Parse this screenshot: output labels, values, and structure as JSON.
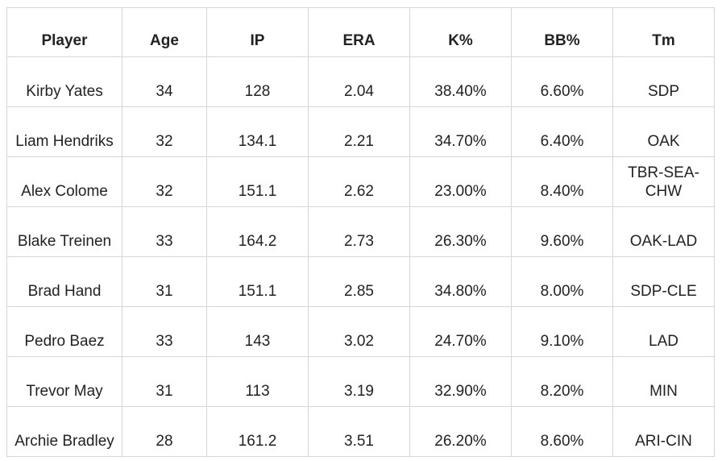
{
  "table": {
    "headers": [
      "Player",
      "Age",
      "IP",
      "ERA",
      "K%",
      "BB%",
      "Tm"
    ],
    "rows": [
      [
        "Kirby Yates",
        "34",
        "128",
        "2.04",
        "38.40%",
        "6.60%",
        "SDP"
      ],
      [
        "Liam Hendriks",
        "32",
        "134.1",
        "2.21",
        "34.70%",
        "6.40%",
        "OAK"
      ],
      [
        "Alex Colome",
        "32",
        "151.1",
        "2.62",
        "23.00%",
        "8.40%",
        "TBR-SEA-CHW"
      ],
      [
        "Blake Treinen",
        "33",
        "164.2",
        "2.73",
        "26.30%",
        "9.60%",
        "OAK-LAD"
      ],
      [
        "Brad Hand",
        "31",
        "151.1",
        "2.85",
        "34.80%",
        "8.00%",
        "SDP-CLE"
      ],
      [
        "Pedro Baez",
        "33",
        "143",
        "3.02",
        "24.70%",
        "9.10%",
        "LAD"
      ],
      [
        "Trevor May",
        "31",
        "113",
        "3.19",
        "32.90%",
        "8.20%",
        "MIN"
      ],
      [
        "Archie Bradley",
        "28",
        "161.2",
        "3.51",
        "26.20%",
        "8.60%",
        "ARI-CIN"
      ]
    ]
  }
}
